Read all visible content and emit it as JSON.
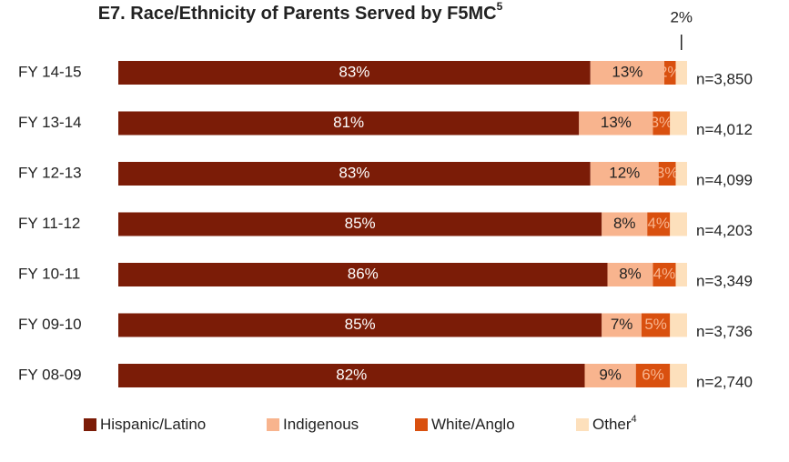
{
  "chart_data": {
    "type": "stacked-bar-horizontal",
    "title": "E7. Race/Ethnicity of Parents Served by F5MC",
    "title_sup": "5",
    "categories": [
      "FY 14-15",
      "FY 13-14",
      "FY 12-13",
      "FY 11-12",
      "FY 10-11",
      "FY 09-10",
      "FY 08-09"
    ],
    "n_labels": [
      "n=3,850",
      "n=4,012",
      "n=4,099",
      "n=4,203",
      "n=3,349",
      "n=3,736",
      "n=2,740"
    ],
    "xlim": [
      0,
      100
    ],
    "series": [
      {
        "name": "Hispanic/Latino",
        "color": "#7b1c07",
        "label_color": "#ffffff",
        "values": [
          83,
          81,
          83,
          85,
          86,
          85,
          82
        ],
        "value_labels": [
          "83%",
          "81%",
          "83%",
          "85%",
          "86%",
          "85%",
          "82%"
        ]
      },
      {
        "name": "Indigenous",
        "color": "#f8b48e",
        "label_color": "#222222",
        "values": [
          13,
          13,
          12,
          8,
          8,
          7,
          9
        ],
        "value_labels": [
          "13%",
          "13%",
          "12%",
          "8%",
          "8%",
          "7%",
          "9%"
        ]
      },
      {
        "name": "White/Anglo",
        "color": "#d9500f",
        "label_color": "#f8b48e",
        "values": [
          2,
          3,
          3,
          4,
          4,
          5,
          6
        ],
        "value_labels": [
          "2%",
          "3%",
          "3%",
          "4%",
          "4%",
          "5%",
          "6%"
        ]
      },
      {
        "name": "Other",
        "name_sup": "4",
        "color": "#fde0bc",
        "values": [
          2,
          3,
          2,
          3,
          2,
          3,
          3
        ]
      }
    ],
    "annotation": {
      "text": "2%",
      "series": 3,
      "category": 0
    }
  }
}
